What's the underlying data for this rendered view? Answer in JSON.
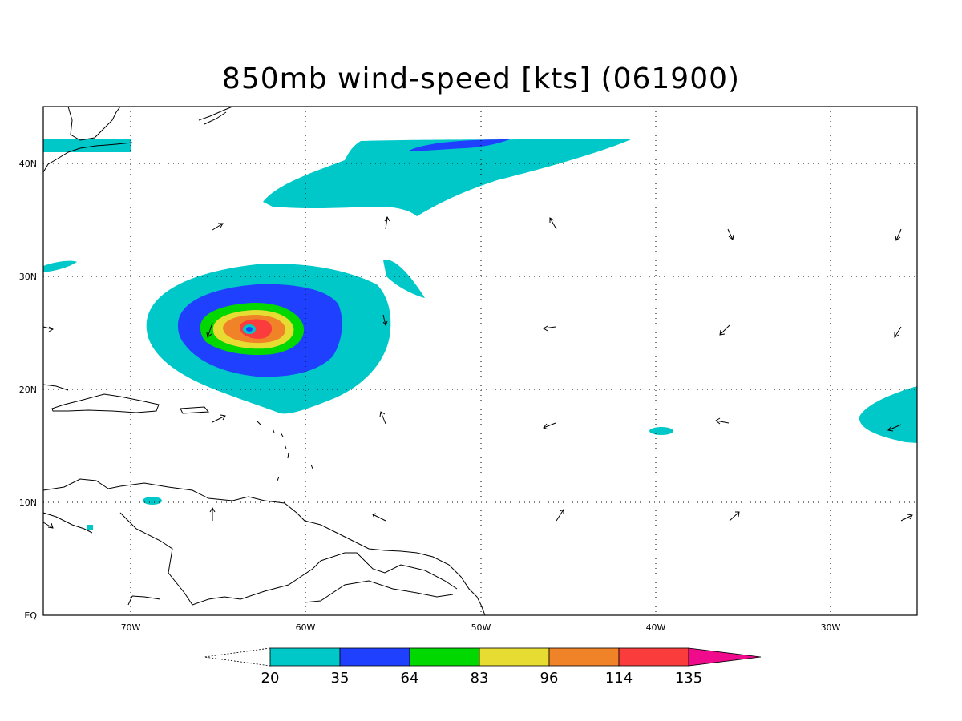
{
  "title": "850mb wind-speed [kts] (061900)",
  "axes": {
    "lat_labels": [
      "EQ",
      "10N",
      "20N",
      "30N",
      "40N"
    ],
    "lon_labels": [
      "70W",
      "60W",
      "50W",
      "40W",
      "30W"
    ]
  },
  "colorbar": {
    "labels": [
      "20",
      "35",
      "64",
      "83",
      "96",
      "114",
      "135"
    ],
    "colors": [
      "#00c8c8",
      "#2040ff",
      "#00d800",
      "#e6dc32",
      "#f08228",
      "#fa3c3c",
      "#f00a8c"
    ]
  },
  "map": {
    "extent": {
      "lon_min": -75,
      "lon_max": -25,
      "lat_min": 0,
      "lat_max": 45
    },
    "grid": "dotted",
    "storm_center": {
      "lon": -63.0,
      "lat": 25.2
    }
  }
}
